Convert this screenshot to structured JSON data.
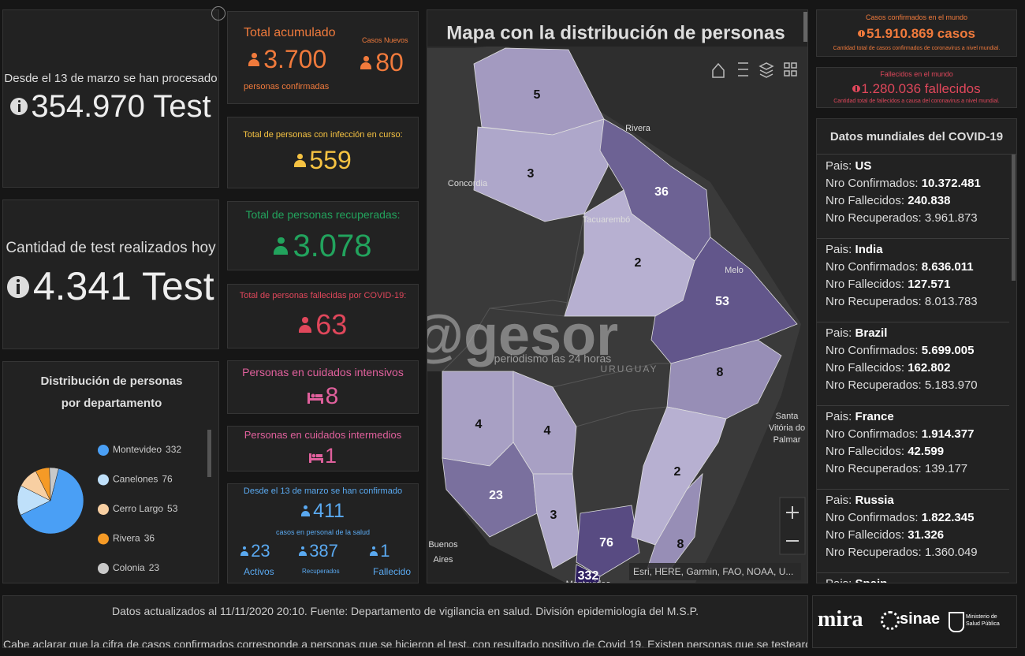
{
  "tests": {
    "processed_label": "Desde el 13 de marzo se han procesado",
    "processed_value": "354.970 Test",
    "today_label": "Cantidad de test realizados hoy",
    "today_value": "4.341 Test"
  },
  "chart_data": {
    "type": "pie",
    "title": "Distribución de personas por departamento",
    "categories": [
      "Montevideo",
      "Canelones",
      "Cerro Largo",
      "Rivera",
      "Colonia"
    ],
    "values": [
      332,
      76,
      53,
      36,
      23
    ],
    "colors": [
      "#4a9ff5",
      "#bfe0fa",
      "#f8cfa2",
      "#f59a26",
      "#c9c9c9"
    ]
  },
  "cards": {
    "total": {
      "title": "Total acumulado",
      "value": "3.700",
      "caption": "personas confirmadas",
      "new_title": "Casos Nuevos",
      "new_value": "80"
    },
    "active": {
      "title": "Total de personas con infección en curso:",
      "value": "559"
    },
    "recovered": {
      "title": "Total de personas recuperadas:",
      "value": "3.078"
    },
    "deceased": {
      "title": "Total de personas fallecidas por COVID-19:",
      "value": "63"
    },
    "icu": {
      "title": "Personas en cuidados intensivos",
      "value": "8"
    },
    "intermediate": {
      "title": "Personas en cuidados intermedios",
      "value": "1"
    },
    "health": {
      "title": "Desde el 13 de marzo se han confirmado",
      "value": "411",
      "caption": "casos en personal de la salud",
      "items": [
        {
          "value": "23",
          "label": "Activos"
        },
        {
          "value": "387",
          "label": "Recuperados"
        },
        {
          "value": "1",
          "label": "Fallecido"
        }
      ]
    }
  },
  "map": {
    "title": "Mapa con la distribución de personas",
    "regions": [
      {
        "value": 5
      },
      {
        "value": 3
      },
      {
        "value": 36
      },
      {
        "value": 2
      },
      {
        "value": 53
      },
      {
        "value": 8
      },
      {
        "value": 4
      },
      {
        "value": 4
      },
      {
        "value": 23
      },
      {
        "value": 3
      },
      {
        "value": 76
      },
      {
        "value": 332
      },
      {
        "value": 2
      },
      {
        "value": 8
      }
    ],
    "places": [
      "Rivera",
      "Concordia",
      "Tacuarembó",
      "Melo",
      "URUGUAY",
      "Santa",
      "Vitória do",
      "Palmar",
      "Buenos",
      "Aires",
      "Montevideo"
    ],
    "watermark": "@gesor",
    "watermark_sub": "periodismo las 24 horas",
    "attribution": "Esri, HERE, Garmin, FAO, NOAA, U..."
  },
  "world": {
    "cases": {
      "title": "Casos confirmados en el mundo",
      "value": "51.910.869 casos",
      "caption": "Cantidad total de casos confirmados de coronavirus a nivel mundial."
    },
    "deaths": {
      "title": "Fallecidos en el mundo",
      "value": "1.280.036 fallecidos",
      "caption": "Cantidad total de fallecidos a causa del coronavirus a nivel mundial."
    }
  },
  "countries": {
    "title": "Datos mundiales del COVID-19",
    "labels": {
      "country": "Pais:",
      "confirmed": "Nro Confirmados:",
      "deaths": "Nro Fallecidos:",
      "recovered": "Nro Recuperados:"
    },
    "rows": [
      {
        "country": "US",
        "confirmed": "10.372.481",
        "deaths": "240.838",
        "recovered": "3.961.873"
      },
      {
        "country": "India",
        "confirmed": "8.636.011",
        "deaths": "127.571",
        "recovered": "8.013.783"
      },
      {
        "country": "Brazil",
        "confirmed": "5.699.005",
        "deaths": "162.802",
        "recovered": "5.183.970"
      },
      {
        "country": "France",
        "confirmed": "1.914.377",
        "deaths": "42.599",
        "recovered": "139.177"
      },
      {
        "country": "Russia",
        "confirmed": "1.822.345",
        "deaths": "31.326",
        "recovered": "1.360.049"
      },
      {
        "country": "Spain"
      }
    ]
  },
  "footer": {
    "updated": "Datos actualizados al 11/11/2020 20:10. Fuente: Departamento de vigilancia en salud. División epidemiología del M.S.P.",
    "note": "Cabe aclarar que la cifra de casos confirmados corresponde a personas que se hicieron el test, con resultado positivo de Covid 19. Existen personas que se testearon"
  },
  "logos": {
    "mira": "mira",
    "sinae": "sinae",
    "ministry": "Ministerio de Salud Pública"
  }
}
